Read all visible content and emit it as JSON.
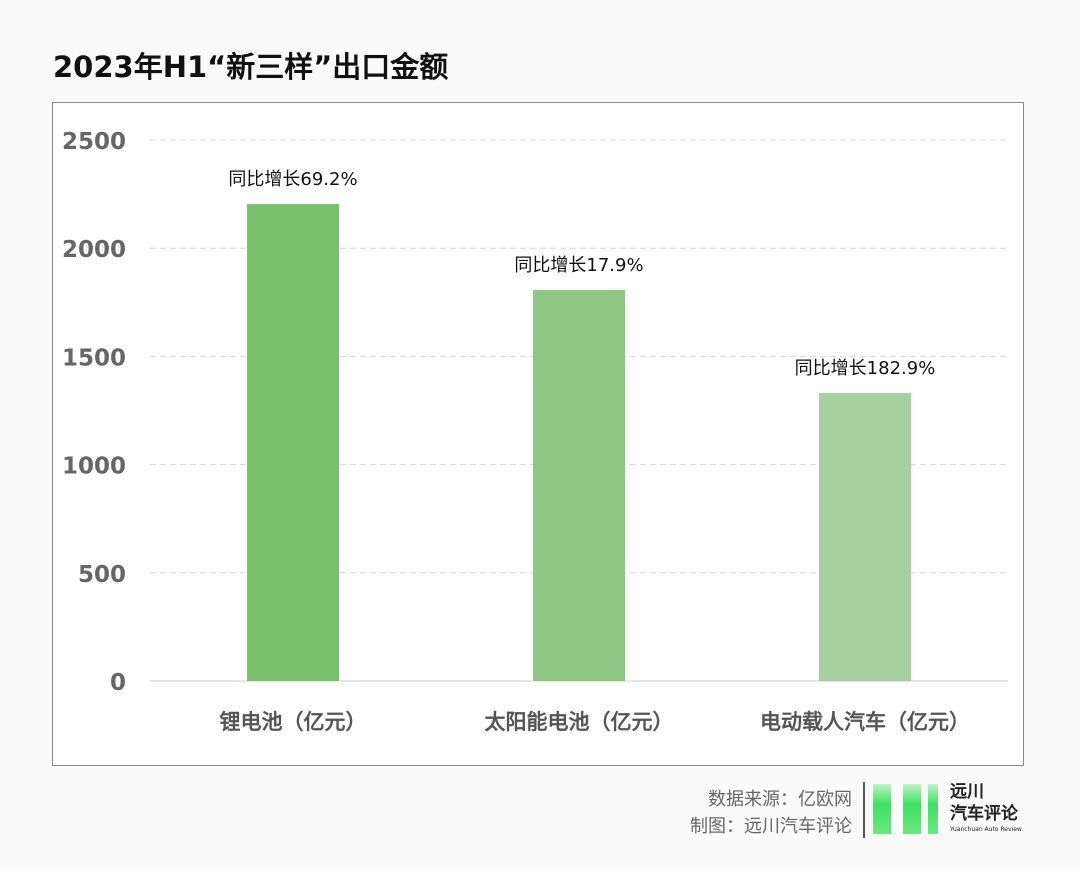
{
  "title": "2023年H1“新三样”出口金额",
  "chart_data": {
    "type": "bar",
    "title": "2023年H1“新三样”出口金额",
    "categories": [
      "锂电池（亿元）",
      "太阳能电池（亿元）",
      "电动载人汽车（亿元）"
    ],
    "values": [
      2204,
      1807,
      1331
    ],
    "data_labels": [
      "同比增长69.2%",
      "同比增长17.9%",
      "同比增长182.9%"
    ],
    "colors": [
      "#79c16b",
      "#8dc783",
      "#a8cfa0"
    ],
    "ylim": [
      0,
      2500
    ],
    "yticks": [
      0,
      500,
      1000,
      1500,
      2000,
      2500
    ],
    "grid": true,
    "xlabel": "",
    "ylabel": ""
  },
  "footer": {
    "source": "数据来源：亿欧网",
    "made_by": "制图：远川汽车评论",
    "logo_line1": "远川",
    "logo_line2": "汽车评论",
    "logo_sub": "Yuanchuan Auto Review"
  }
}
